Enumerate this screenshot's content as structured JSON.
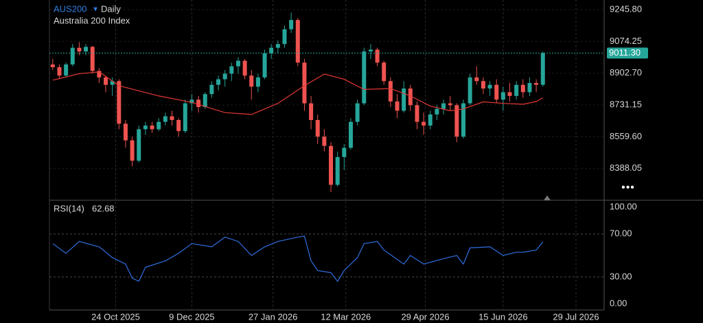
{
  "chart_data": {
    "type": "candlestick",
    "title": "AUS200",
    "interval": "Daily",
    "subtitle": "Australia 200 Index",
    "x": [
      "2025-09-16",
      "2025-09-20",
      "2025-09-24",
      "2025-09-28",
      "2025-10-02",
      "2025-10-06",
      "2025-10-10",
      "2025-10-14",
      "2025-10-18",
      "2025-10-22",
      "2025-10-26",
      "2025-10-30",
      "2025-11-03",
      "2025-11-07",
      "2025-11-11",
      "2025-11-15",
      "2025-11-19",
      "2025-11-23",
      "2025-11-27",
      "2025-12-01",
      "2025-12-05",
      "2025-12-09",
      "2025-12-13",
      "2025-12-17",
      "2025-12-21",
      "2025-12-25",
      "2025-12-29",
      "2026-01-02",
      "2026-01-06",
      "2026-01-10",
      "2026-01-14",
      "2026-01-18",
      "2026-01-22",
      "2026-01-26",
      "2026-01-30",
      "2026-02-03",
      "2026-02-07",
      "2026-02-11",
      "2026-02-15",
      "2026-02-19",
      "2026-02-23",
      "2026-02-27",
      "2026-03-03",
      "2026-03-07",
      "2026-03-11",
      "2026-03-15",
      "2026-03-19",
      "2026-03-23",
      "2026-03-27",
      "2026-03-31",
      "2026-04-04",
      "2026-04-08",
      "2026-04-12",
      "2026-04-16",
      "2026-04-20",
      "2026-04-24",
      "2026-04-28",
      "2026-05-02",
      "2026-05-06",
      "2026-05-10",
      "2026-05-14",
      "2026-05-18",
      "2026-05-22",
      "2026-05-26",
      "2026-05-30",
      "2026-06-03",
      "2026-06-07",
      "2026-06-11",
      "2026-06-15",
      "2026-06-19",
      "2026-06-23",
      "2026-06-27",
      "2026-07-01",
      "2026-07-05",
      "2026-07-09"
    ],
    "open": [
      8950,
      8935,
      8890,
      8950,
      9040,
      9020,
      9045,
      8915,
      8880,
      8840,
      8860,
      8630,
      8540,
      8430,
      8600,
      8620,
      8600,
      8640,
      8670,
      8650,
      8590,
      8740,
      8760,
      8720,
      8790,
      8840,
      8870,
      8900,
      8940,
      8970,
      8890,
      8830,
      8880,
      9010,
      9040,
      9060,
      9140,
      9190,
      8960,
      8740,
      8650,
      8560,
      8510,
      8300,
      8450,
      8500,
      8640,
      8740,
      9020,
      9030,
      8960,
      8860,
      8750,
      8700,
      8820,
      8730,
      8640,
      8620,
      8680,
      8710,
      8740,
      8730,
      8560,
      8740,
      8880,
      8860,
      8820,
      8840,
      8760,
      8800,
      8780,
      8840,
      8800,
      8850,
      8840
    ],
    "high": [
      8980,
      8950,
      8960,
      9060,
      9070,
      9060,
      9050,
      8930,
      8890,
      8880,
      8870,
      8650,
      8560,
      8620,
      8640,
      8640,
      8660,
      8690,
      8700,
      8660,
      8760,
      8790,
      8780,
      8800,
      8860,
      8890,
      8920,
      8960,
      8990,
      8980,
      8920,
      8900,
      9030,
      9060,
      9080,
      9160,
      9230,
      9200,
      8980,
      8780,
      8680,
      8600,
      8530,
      8480,
      8520,
      8660,
      8760,
      9040,
      9060,
      9040,
      8970,
      8880,
      8790,
      8860,
      8840,
      8750,
      8690,
      8700,
      8730,
      8760,
      8780,
      8740,
      8760,
      8900,
      8940,
      8880,
      8860,
      8870,
      8830,
      8850,
      8860,
      8870,
      8880,
      8870,
      9020
    ],
    "low": [
      8920,
      8870,
      8880,
      8940,
      9000,
      9000,
      8900,
      8850,
      8800,
      8780,
      8600,
      8500,
      8400,
      8420,
      8570,
      8580,
      8590,
      8620,
      8620,
      8560,
      8580,
      8700,
      8690,
      8710,
      8770,
      8810,
      8830,
      8860,
      8900,
      8870,
      8760,
      8800,
      8870,
      8980,
      9010,
      9040,
      9120,
      8940,
      8700,
      8600,
      8520,
      8480,
      8260,
      8290,
      8380,
      8490,
      8620,
      8730,
      8980,
      8940,
      8840,
      8720,
      8660,
      8690,
      8700,
      8600,
      8570,
      8600,
      8650,
      8680,
      8700,
      8530,
      8550,
      8730,
      8840,
      8790,
      8780,
      8740,
      8700,
      8750,
      8760,
      8770,
      8780,
      8800,
      8830
    ],
    "close": [
      8935,
      8890,
      8950,
      9040,
      9020,
      9045,
      8915,
      8880,
      8840,
      8860,
      8630,
      8540,
      8430,
      8600,
      8620,
      8600,
      8640,
      8670,
      8650,
      8590,
      8740,
      8760,
      8720,
      8790,
      8840,
      8870,
      8900,
      8940,
      8970,
      8890,
      8830,
      8880,
      9010,
      9040,
      9060,
      9140,
      9190,
      8960,
      8740,
      8650,
      8560,
      8510,
      8300,
      8450,
      8500,
      8640,
      8740,
      9020,
      9030,
      8960,
      8860,
      8750,
      8700,
      8820,
      8730,
      8640,
      8620,
      8680,
      8710,
      8740,
      8730,
      8560,
      8740,
      8880,
      8860,
      8820,
      8840,
      8760,
      8800,
      8780,
      8840,
      8800,
      8850,
      8840,
      9011.3
    ],
    "up_color": "#26a69a",
    "down_color": "#ef5350",
    "xlim": [
      "2025-09-14",
      "2026-08-15"
    ],
    "xticks": [
      {
        "value": "2025-10-24",
        "label": "24 Oct 2025"
      },
      {
        "value": "2025-12-09",
        "label": "9 Dec 2025"
      },
      {
        "value": "2026-01-27",
        "label": "27 Jan 2026"
      },
      {
        "value": "2026-03-12",
        "label": "12 Mar 2026"
      },
      {
        "value": "2026-04-29",
        "label": "29 Apr 2026"
      },
      {
        "value": "2026-06-15",
        "label": "15 Jun 2026"
      },
      {
        "value": "2026-07-29",
        "label": "29 Jul 2026"
      }
    ],
    "ylim": [
      8224,
      9298
    ],
    "yticks": [
      {
        "value": 9245.8,
        "label": "9245.80"
      },
      9074.25,
      {
        "value": 8902.7,
        "label": "8902.70"
      },
      8731.15,
      {
        "value": 8559.6,
        "label": "8559.60"
      },
      8388.05
    ],
    "grid": true,
    "price_tag": {
      "value": 9011.3,
      "label": "9011.30"
    },
    "price_tag_color": "#26a69a",
    "ma": {
      "color": "#e53935",
      "x": [
        "2025-09-16",
        "2025-10-02",
        "2025-10-14",
        "2025-10-26",
        "2025-11-19",
        "2025-12-09",
        "2025-12-29",
        "2026-01-14",
        "2026-01-30",
        "2026-02-15",
        "2026-02-27",
        "2026-03-11",
        "2026-03-23",
        "2026-04-08",
        "2026-04-20",
        "2026-05-02",
        "2026-05-14",
        "2026-05-22",
        "2026-06-03",
        "2026-06-15",
        "2026-06-27",
        "2026-07-05",
        "2026-07-09"
      ],
      "values": [
        8865,
        8900,
        8910,
        8835,
        8780,
        8745,
        8690,
        8680,
        8740,
        8835,
        8898,
        8870,
        8815,
        8820,
        8780,
        8725,
        8700,
        8710,
        8748,
        8740,
        8735,
        8750,
        8770
      ]
    },
    "rsi": {
      "title": "RSI(14)",
      "color": "#2f6fe0",
      "x": [
        "2025-09-16",
        "2025-09-24",
        "2025-10-02",
        "2025-10-14",
        "2025-10-22",
        "2025-10-30",
        "2025-11-03",
        "2025-11-07",
        "2025-11-11",
        "2025-11-23",
        "2025-12-01",
        "2025-12-09",
        "2025-12-21",
        "2025-12-29",
        "2026-01-06",
        "2026-01-14",
        "2026-01-22",
        "2026-01-30",
        "2026-02-11",
        "2026-02-15",
        "2026-02-19",
        "2026-02-23",
        "2026-03-03",
        "2026-03-07",
        "2026-03-11",
        "2026-03-19",
        "2026-03-23",
        "2026-03-31",
        "2026-04-04",
        "2026-04-16",
        "2026-04-20",
        "2026-04-28",
        "2026-05-10",
        "2026-05-18",
        "2026-05-22",
        "2026-05-26",
        "2026-06-07",
        "2026-06-15",
        "2026-06-23",
        "2026-06-27",
        "2026-07-05",
        "2026-07-09"
      ],
      "values": [
        61,
        52,
        63,
        58,
        48,
        42,
        29,
        26,
        39,
        45,
        52,
        61,
        58,
        67,
        63,
        50,
        58,
        63,
        67,
        68,
        45,
        36,
        34,
        26,
        36,
        48,
        61,
        63,
        55,
        42,
        50,
        42,
        47,
        50,
        42,
        57,
        58,
        50,
        53,
        53,
        55,
        62.68
      ],
      "ylim": [
        0,
        100
      ],
      "yticks": [
        {
          "value": 100,
          "label": "100.00"
        },
        {
          "value": 70,
          "label": "70.00"
        },
        {
          "value": 30,
          "label": "30.00"
        },
        {
          "value": 0,
          "label": "0.00"
        }
      ]
    }
  }
}
